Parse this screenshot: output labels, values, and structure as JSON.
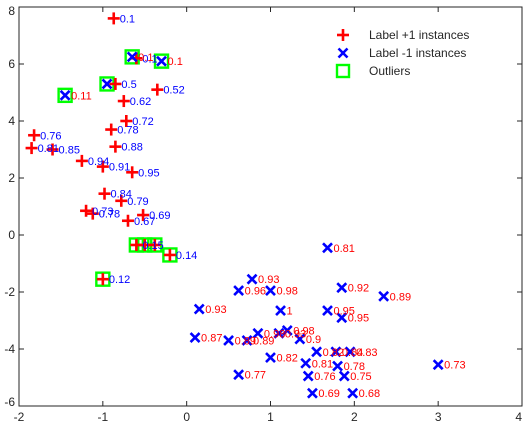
{
  "chart_data": {
    "type": "scatter",
    "xlim": [
      -2,
      4
    ],
    "ylim": [
      -6,
      8
    ],
    "xticks": [
      -2,
      -1,
      0,
      1,
      2,
      3,
      4
    ],
    "yticks": [
      -6,
      -4,
      -2,
      0,
      2,
      4,
      6,
      8
    ],
    "grid": false,
    "legend_position": "top-right",
    "legend": [
      {
        "label": "Label +1 instances",
        "marker": "plus",
        "color": "#ff0000"
      },
      {
        "label": "Label -1 instances",
        "marker": "x",
        "color": "#0000ff"
      },
      {
        "label": "Outliers",
        "marker": "square",
        "color": "#00ff00"
      }
    ],
    "series": [
      {
        "name": "Label +1 instances",
        "marker": "plus",
        "color": "#ff0000",
        "label_color": "#0000ff",
        "points": [
          {
            "x": -0.87,
            "y": 7.6,
            "label": "0.1"
          },
          {
            "x": -0.6,
            "y": 6.2,
            "label": "0.1"
          },
          {
            "x": -0.85,
            "y": 5.3,
            "label": "0.5"
          },
          {
            "x": -0.35,
            "y": 5.1,
            "label": "0.52"
          },
          {
            "x": -0.75,
            "y": 4.7,
            "label": "0.62"
          },
          {
            "x": -0.72,
            "y": 4.0,
            "label": "0.72"
          },
          {
            "x": -0.9,
            "y": 3.7,
            "label": "0.78"
          },
          {
            "x": -1.82,
            "y": 3.5,
            "label": "0.76"
          },
          {
            "x": -1.85,
            "y": 3.05,
            "label": "0.81"
          },
          {
            "x": -1.6,
            "y": 3.0,
            "label": "0.85"
          },
          {
            "x": -0.85,
            "y": 3.1,
            "label": "0.88"
          },
          {
            "x": -1.25,
            "y": 2.6,
            "label": "0.94"
          },
          {
            "x": -1.0,
            "y": 2.4,
            "label": "0.91"
          },
          {
            "x": -0.65,
            "y": 2.2,
            "label": "0.95"
          },
          {
            "x": -0.98,
            "y": 1.45,
            "label": "0.84"
          },
          {
            "x": -0.78,
            "y": 1.2,
            "label": "0.79"
          },
          {
            "x": -1.2,
            "y": 0.85,
            "label": "0.73"
          },
          {
            "x": -1.12,
            "y": 0.75,
            "label": "0.78"
          },
          {
            "x": -0.52,
            "y": 0.7,
            "label": "0.69"
          },
          {
            "x": -0.7,
            "y": 0.5,
            "label": "0.67"
          },
          {
            "x": -0.6,
            "y": -0.35,
            "label": "0.15"
          },
          {
            "x": -0.5,
            "y": -0.35,
            "label": ""
          },
          {
            "x": -0.38,
            "y": -0.35,
            "label": ""
          },
          {
            "x": -0.2,
            "y": -0.7,
            "label": "0.14"
          },
          {
            "x": -1.0,
            "y": -1.55,
            "label": "0.12"
          }
        ]
      },
      {
        "name": "Label -1 instances",
        "marker": "x",
        "color": "#0000ff",
        "label_color": "#ff0000",
        "points": [
          {
            "x": -0.65,
            "y": 6.25,
            "label": "0.1"
          },
          {
            "x": -0.3,
            "y": 6.1,
            "label": "0.1"
          },
          {
            "x": -1.45,
            "y": 4.9,
            "label": "0.11"
          },
          {
            "x": -0.95,
            "y": 5.3,
            "label": ""
          },
          {
            "x": 1.68,
            "y": -0.45,
            "label": "0.81"
          },
          {
            "x": 0.78,
            "y": -1.55,
            "label": "0.93"
          },
          {
            "x": 1.85,
            "y": -1.85,
            "label": "0.92"
          },
          {
            "x": 2.35,
            "y": -2.15,
            "label": "0.89"
          },
          {
            "x": 0.62,
            "y": -1.95,
            "label": "0.96"
          },
          {
            "x": 1.0,
            "y": -1.95,
            "label": "0.98"
          },
          {
            "x": 0.15,
            "y": -2.6,
            "label": "0.93"
          },
          {
            "x": 1.12,
            "y": -2.65,
            "label": "1"
          },
          {
            "x": 1.85,
            "y": -2.9,
            "label": "0.95"
          },
          {
            "x": 1.68,
            "y": -2.65,
            "label": "0.95"
          },
          {
            "x": 1.2,
            "y": -3.35,
            "label": "0.98"
          },
          {
            "x": 1.1,
            "y": -3.45,
            "label": "0.93"
          },
          {
            "x": 0.85,
            "y": -3.45,
            "label": "0.98"
          },
          {
            "x": 1.35,
            "y": -3.65,
            "label": "0.9"
          },
          {
            "x": 0.1,
            "y": -3.6,
            "label": "0.87"
          },
          {
            "x": 0.5,
            "y": -3.7,
            "label": "0.89"
          },
          {
            "x": 0.72,
            "y": -3.7,
            "label": "0.89"
          },
          {
            "x": 1.0,
            "y": -4.3,
            "label": "0.82"
          },
          {
            "x": 1.55,
            "y": -4.1,
            "label": "0.82"
          },
          {
            "x": 1.78,
            "y": -4.1,
            "label": "0.84"
          },
          {
            "x": 1.95,
            "y": -4.1,
            "label": "0.83"
          },
          {
            "x": 1.42,
            "y": -4.5,
            "label": "0.81"
          },
          {
            "x": 1.8,
            "y": -4.6,
            "label": "0.78"
          },
          {
            "x": 0.62,
            "y": -4.9,
            "label": "0.77"
          },
          {
            "x": 1.45,
            "y": -4.95,
            "label": "0.76"
          },
          {
            "x": 1.88,
            "y": -4.95,
            "label": "0.75"
          },
          {
            "x": 3.0,
            "y": -4.55,
            "label": "0.73"
          },
          {
            "x": 1.5,
            "y": -5.55,
            "label": "0.69"
          },
          {
            "x": 1.98,
            "y": -5.55,
            "label": "0.68"
          }
        ]
      },
      {
        "name": "Outliers",
        "marker": "square",
        "color": "#00ff00",
        "points": [
          {
            "x": -0.65,
            "y": 6.25
          },
          {
            "x": -0.3,
            "y": 6.1
          },
          {
            "x": -0.95,
            "y": 5.3
          },
          {
            "x": -1.45,
            "y": 4.9
          },
          {
            "x": -0.6,
            "y": -0.35
          },
          {
            "x": -0.5,
            "y": -0.35
          },
          {
            "x": -0.38,
            "y": -0.35
          },
          {
            "x": -0.2,
            "y": -0.7
          },
          {
            "x": -1.0,
            "y": -1.55
          }
        ]
      }
    ]
  }
}
